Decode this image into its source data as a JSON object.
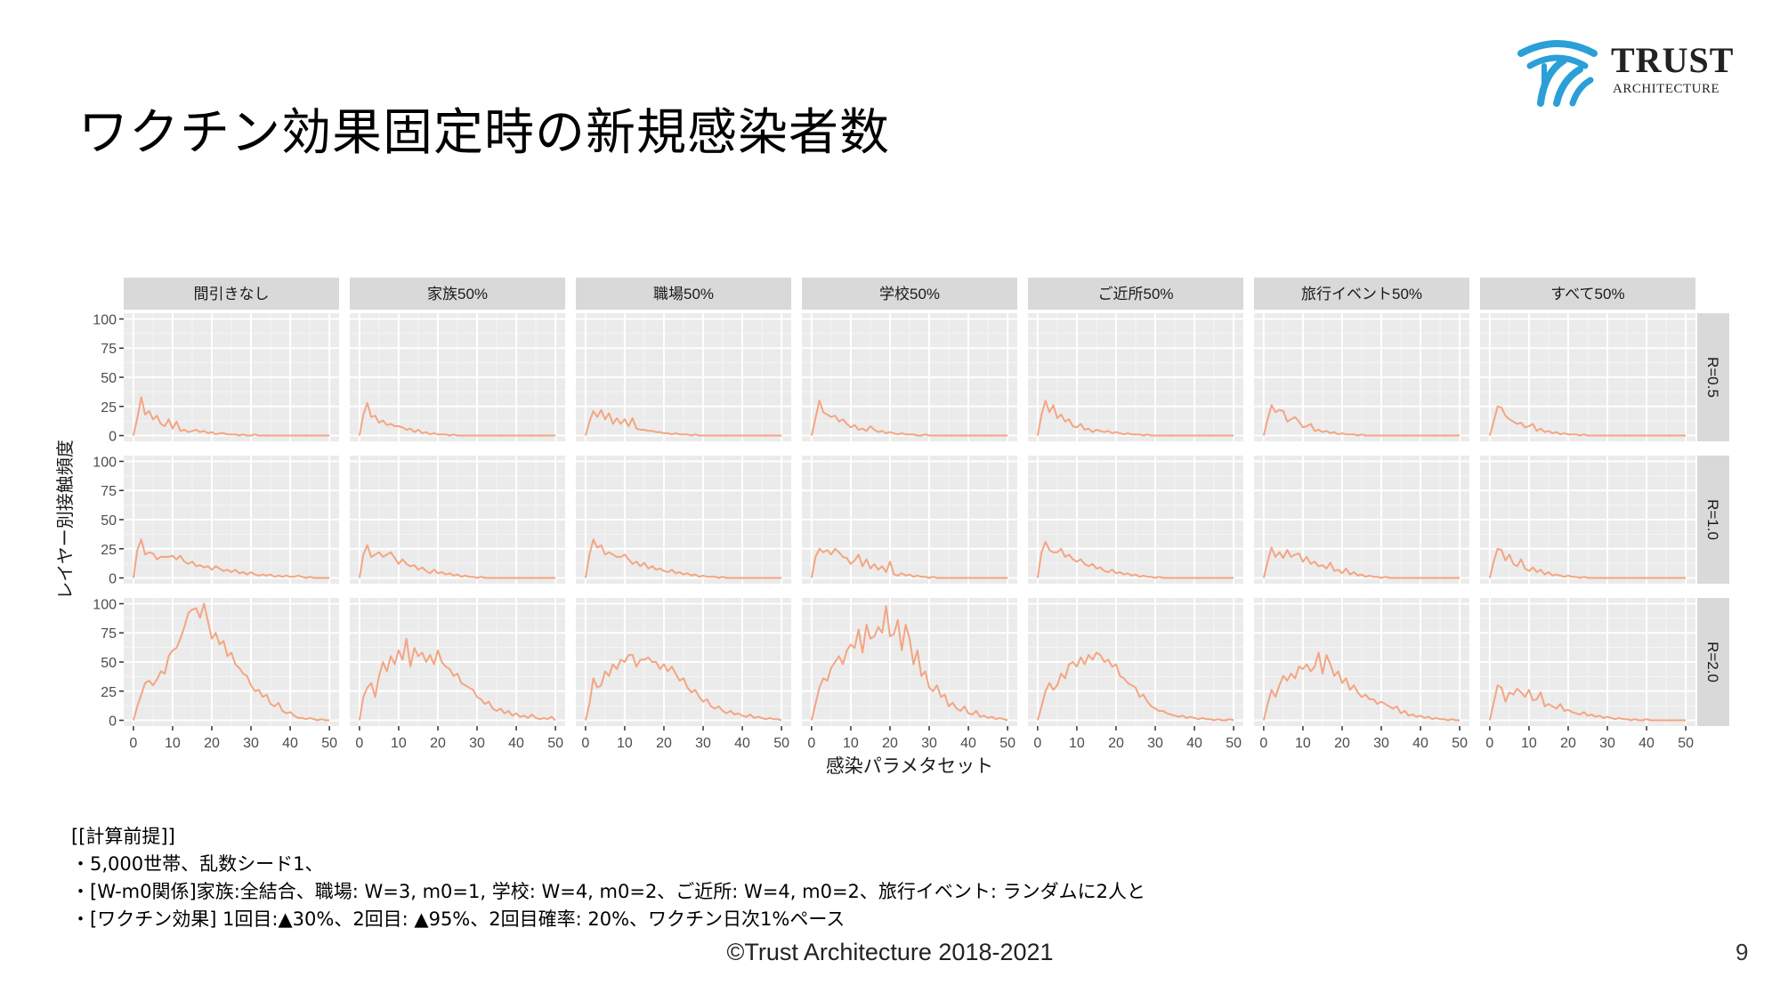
{
  "slide": {
    "title": "ワクチン効果固定時の新規感染者数",
    "footer": "©Trust Architecture 2018-2021",
    "page_number": "9"
  },
  "logo": {
    "word": "TRUST",
    "sub": "ARCHITECTURE",
    "accent": "#2a9fd8"
  },
  "notes": [
    "[[計算前提]]",
    "・5,000世帯、乱数シード1、",
    "・[W-m0関係]家族:全結合、職場: W=3, m0=1, 学校: W=4, m0=2、ご近所: W=4, m0=2、旅行イベント: ランダムに2人と",
    "・[ワクチン効果] 1回目:▲30%、2回目: ▲95%、2回目確率: 20%、ワクチン日次1%ペース"
  ],
  "chart_data": {
    "type": "line",
    "xlabel": "感染パラメタセット",
    "ylabel": "レイヤー別接触頻度",
    "xlim": [
      0,
      50
    ],
    "ylim": [
      0,
      100
    ],
    "xticks": [
      0,
      10,
      20,
      30,
      40,
      50
    ],
    "yticks": [
      0,
      25,
      50,
      75,
      100
    ],
    "line_color": "#f4a582",
    "panel_bg": "#ebebeb",
    "strip_bg": "#d9d9d9",
    "grid": true,
    "columns": [
      "間引きなし",
      "家族50%",
      "職場50%",
      "学校50%",
      "ご近所50%",
      "旅行イベント50%",
      "すべて50%"
    ],
    "rows": [
      "R=0.5",
      "R=1.0",
      "R=2.0"
    ],
    "x": [
      0,
      1,
      2,
      3,
      4,
      5,
      6,
      7,
      8,
      9,
      10,
      11,
      12,
      13,
      14,
      15,
      16,
      17,
      18,
      19,
      20,
      21,
      22,
      23,
      24,
      25,
      26,
      27,
      28,
      29,
      30,
      31,
      32,
      33,
      34,
      35,
      36,
      37,
      38,
      39,
      40,
      41,
      42,
      43,
      44,
      45,
      46,
      47,
      48,
      49,
      50
    ],
    "panels": [
      [
        [
          0,
          15,
          33,
          18,
          21,
          14,
          17,
          10,
          8,
          14,
          6,
          12,
          4,
          5,
          3,
          4,
          5,
          3,
          4,
          2,
          3,
          1,
          2,
          2,
          1,
          1,
          1,
          0,
          1,
          0,
          0,
          1,
          0,
          0,
          0,
          0,
          0,
          0,
          0,
          0,
          0,
          0,
          0,
          0,
          0,
          0,
          0,
          0,
          0,
          0,
          0
        ],
        [
          0,
          24,
          33,
          20,
          22,
          21,
          16,
          18,
          18,
          18,
          19,
          16,
          19,
          14,
          12,
          14,
          10,
          11,
          9,
          10,
          7,
          10,
          8,
          6,
          7,
          5,
          7,
          4,
          5,
          3,
          5,
          3,
          2,
          3,
          2,
          3,
          1,
          2,
          1,
          2,
          1,
          1,
          2,
          1,
          0,
          1,
          0,
          0,
          0,
          0,
          0
        ],
        [
          0,
          12,
          22,
          32,
          34,
          30,
          35,
          42,
          40,
          55,
          60,
          62,
          70,
          80,
          92,
          95,
          96,
          88,
          100,
          85,
          70,
          75,
          65,
          68,
          55,
          58,
          48,
          45,
          40,
          38,
          30,
          25,
          26,
          20,
          22,
          14,
          12,
          15,
          8,
          6,
          7,
          4,
          2,
          2,
          1,
          2,
          1,
          0,
          1,
          0,
          0
        ]
      ],
      [
        [
          0,
          18,
          28,
          16,
          17,
          11,
          13,
          9,
          10,
          8,
          8,
          7,
          5,
          6,
          3,
          5,
          2,
          3,
          1,
          2,
          1,
          1,
          1,
          0,
          1,
          0,
          0,
          0,
          0,
          0,
          0,
          0,
          0,
          0,
          0,
          0,
          0,
          0,
          0,
          0,
          0,
          0,
          0,
          0,
          0,
          0,
          0,
          0,
          0,
          0,
          0
        ],
        [
          0,
          20,
          28,
          18,
          20,
          22,
          18,
          20,
          22,
          17,
          12,
          16,
          12,
          10,
          11,
          7,
          9,
          6,
          4,
          7,
          4,
          5,
          3,
          4,
          2,
          3,
          1,
          2,
          1,
          1,
          0,
          1,
          0,
          0,
          0,
          0,
          0,
          0,
          0,
          0,
          0,
          0,
          0,
          0,
          0,
          0,
          0,
          0,
          0,
          0,
          0
        ],
        [
          0,
          20,
          28,
          32,
          20,
          38,
          50,
          42,
          55,
          48,
          60,
          52,
          70,
          46,
          62,
          55,
          58,
          50,
          56,
          48,
          60,
          50,
          46,
          44,
          38,
          40,
          32,
          30,
          28,
          26,
          20,
          18,
          14,
          16,
          10,
          8,
          10,
          6,
          8,
          4,
          6,
          3,
          4,
          2,
          5,
          2,
          1,
          2,
          1,
          3,
          0
        ]
      ],
      [
        [
          0,
          12,
          21,
          16,
          22,
          14,
          19,
          10,
          15,
          10,
          14,
          8,
          15,
          6,
          5,
          5,
          4,
          4,
          3,
          3,
          2,
          2,
          1,
          2,
          1,
          1,
          1,
          0,
          1,
          0,
          0,
          0,
          0,
          0,
          0,
          0,
          0,
          0,
          0,
          0,
          0,
          0,
          0,
          0,
          0,
          0,
          0,
          0,
          0,
          0,
          0
        ],
        [
          0,
          20,
          33,
          26,
          28,
          20,
          22,
          20,
          18,
          18,
          20,
          16,
          12,
          14,
          10,
          13,
          8,
          10,
          7,
          8,
          6,
          5,
          7,
          4,
          5,
          3,
          4,
          2,
          3,
          1,
          2,
          1,
          1,
          1,
          0,
          1,
          0,
          0,
          0,
          0,
          0,
          0,
          0,
          0,
          0,
          0,
          0,
          0,
          0,
          0,
          0
        ],
        [
          0,
          14,
          36,
          28,
          30,
          42,
          38,
          48,
          44,
          52,
          50,
          56,
          56,
          46,
          52,
          52,
          54,
          50,
          50,
          44,
          48,
          42,
          46,
          40,
          34,
          36,
          28,
          24,
          26,
          20,
          16,
          18,
          12,
          10,
          12,
          8,
          6,
          8,
          5,
          6,
          4,
          3,
          5,
          2,
          3,
          2,
          1,
          2,
          1,
          1,
          0
        ]
      ],
      [
        [
          0,
          15,
          30,
          20,
          18,
          16,
          17,
          12,
          14,
          10,
          7,
          9,
          5,
          6,
          4,
          8,
          5,
          3,
          4,
          2,
          3,
          2,
          1,
          2,
          1,
          1,
          1,
          0,
          0,
          1,
          0,
          0,
          0,
          0,
          0,
          0,
          0,
          0,
          0,
          0,
          0,
          0,
          0,
          0,
          0,
          0,
          0,
          0,
          0,
          0,
          0
        ],
        [
          0,
          18,
          25,
          22,
          24,
          20,
          25,
          22,
          18,
          17,
          12,
          15,
          20,
          10,
          16,
          8,
          12,
          7,
          10,
          5,
          14,
          3,
          2,
          4,
          2,
          3,
          1,
          2,
          1,
          1,
          0,
          1,
          0,
          0,
          0,
          0,
          0,
          0,
          0,
          0,
          0,
          0,
          0,
          0,
          0,
          0,
          0,
          0,
          0,
          0,
          0
        ],
        [
          0,
          14,
          28,
          36,
          34,
          45,
          50,
          55,
          48,
          60,
          65,
          62,
          78,
          58,
          82,
          70,
          72,
          80,
          75,
          98,
          72,
          74,
          86,
          60,
          82,
          70,
          48,
          60,
          38,
          42,
          28,
          25,
          30,
          20,
          22,
          12,
          15,
          10,
          8,
          12,
          6,
          5,
          8,
          3,
          4,
          2,
          3,
          1,
          2,
          1,
          0
        ]
      ],
      [
        [
          0,
          18,
          30,
          20,
          26,
          15,
          18,
          12,
          14,
          8,
          7,
          10,
          5,
          6,
          3,
          5,
          4,
          3,
          4,
          2,
          3,
          2,
          1,
          2,
          1,
          1,
          1,
          0,
          1,
          0,
          0,
          0,
          0,
          0,
          0,
          0,
          0,
          0,
          0,
          0,
          0,
          0,
          0,
          0,
          0,
          0,
          0,
          0,
          0,
          0,
          0
        ],
        [
          0,
          22,
          31,
          24,
          22,
          22,
          25,
          18,
          20,
          16,
          14,
          16,
          12,
          10,
          12,
          8,
          9,
          6,
          5,
          7,
          4,
          5,
          3,
          4,
          2,
          3,
          1,
          2,
          1,
          1,
          0,
          1,
          0,
          0,
          0,
          0,
          0,
          0,
          0,
          0,
          0,
          0,
          0,
          0,
          0,
          0,
          0,
          0,
          0,
          0,
          0
        ],
        [
          0,
          12,
          25,
          32,
          26,
          30,
          40,
          36,
          48,
          50,
          46,
          54,
          48,
          56,
          52,
          58,
          56,
          50,
          52,
          46,
          48,
          38,
          36,
          32,
          30,
          28,
          20,
          22,
          16,
          12,
          10,
          8,
          8,
          6,
          5,
          4,
          3,
          4,
          2,
          3,
          2,
          1,
          2,
          1,
          1,
          0,
          1,
          0,
          0,
          1,
          0
        ]
      ],
      [
        [
          0,
          14,
          26,
          20,
          22,
          21,
          12,
          14,
          16,
          12,
          7,
          8,
          10,
          4,
          5,
          3,
          4,
          2,
          3,
          1,
          2,
          1,
          1,
          1,
          0,
          1,
          0,
          0,
          0,
          0,
          0,
          0,
          0,
          0,
          0,
          0,
          0,
          0,
          0,
          0,
          0,
          0,
          0,
          0,
          0,
          0,
          0,
          0,
          0,
          0,
          0
        ],
        [
          0,
          14,
          26,
          18,
          22,
          17,
          24,
          18,
          20,
          21,
          14,
          18,
          12,
          14,
          10,
          11,
          8,
          13,
          6,
          7,
          4,
          8,
          3,
          5,
          2,
          3,
          1,
          2,
          1,
          1,
          0,
          1,
          0,
          0,
          0,
          0,
          0,
          0,
          0,
          0,
          0,
          0,
          0,
          0,
          0,
          0,
          0,
          0,
          0,
          0,
          0
        ],
        [
          0,
          14,
          26,
          20,
          30,
          38,
          34,
          40,
          36,
          46,
          44,
          48,
          42,
          46,
          58,
          40,
          56,
          48,
          38,
          42,
          32,
          36,
          26,
          30,
          24,
          20,
          22,
          18,
          18,
          14,
          16,
          14,
          12,
          10,
          12,
          6,
          8,
          4,
          5,
          3,
          4,
          2,
          3,
          1,
          2,
          1,
          1,
          0,
          1,
          0,
          0
        ]
      ],
      [
        [
          0,
          12,
          25,
          24,
          17,
          14,
          12,
          10,
          11,
          7,
          8,
          10,
          4,
          6,
          3,
          4,
          2,
          3,
          1,
          2,
          1,
          1,
          1,
          0,
          1,
          0,
          0,
          0,
          0,
          0,
          0,
          0,
          0,
          0,
          0,
          0,
          0,
          0,
          0,
          0,
          0,
          0,
          0,
          0,
          0,
          0,
          0,
          0,
          0,
          0,
          0
        ],
        [
          0,
          14,
          25,
          24,
          15,
          20,
          12,
          10,
          16,
          8,
          6,
          9,
          5,
          7,
          3,
          5,
          2,
          3,
          2,
          1,
          2,
          1,
          1,
          0,
          1,
          0,
          0,
          0,
          0,
          0,
          0,
          0,
          0,
          0,
          0,
          0,
          0,
          0,
          0,
          0,
          0,
          0,
          0,
          0,
          0,
          0,
          0,
          0,
          0,
          0,
          0
        ],
        [
          0,
          15,
          30,
          28,
          16,
          24,
          22,
          27,
          24,
          20,
          26,
          17,
          18,
          24,
          12,
          14,
          12,
          10,
          14,
          8,
          9,
          7,
          6,
          5,
          7,
          4,
          5,
          3,
          4,
          2,
          3,
          2,
          1,
          2,
          1,
          1,
          0,
          1,
          0,
          0,
          1,
          0,
          0,
          0,
          0,
          0,
          0,
          0,
          0,
          0,
          0
        ]
      ]
    ]
  }
}
